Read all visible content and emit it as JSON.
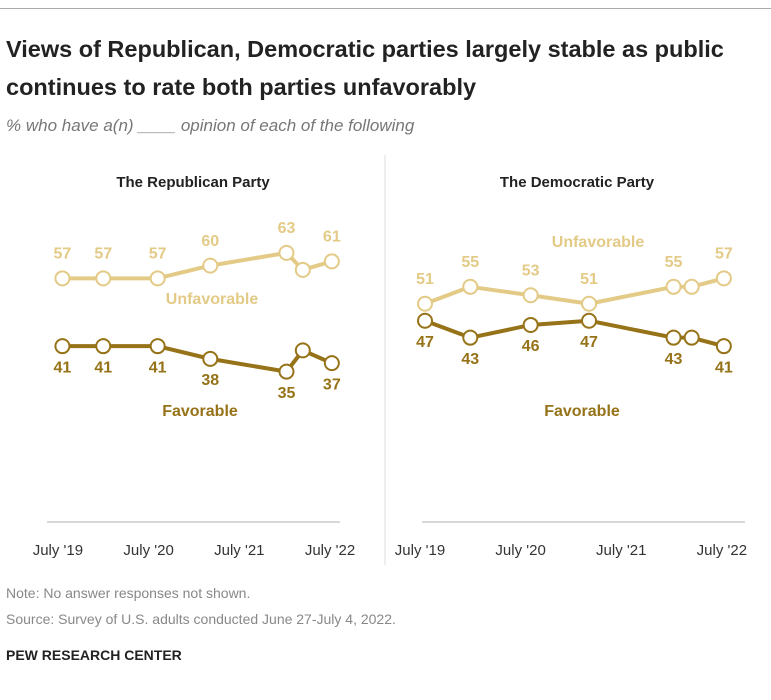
{
  "title": "Views of Republican, Democratic parties largely stable as public continues to rate both parties unfavorably",
  "subtitle": "% who have a(n) ____ opinion of each of the following",
  "chart_data": [
    {
      "type": "line",
      "title": "The Republican Party",
      "x": [
        2019.55,
        2020.0,
        2020.6,
        2021.18,
        2022.02,
        2022.2,
        2022.52
      ],
      "xlim": [
        2019.38,
        2022.61
      ],
      "xticks": [
        {
          "value": 2019.5,
          "label": "July '19"
        },
        {
          "value": 2020.5,
          "label": "July '20"
        },
        {
          "value": 2021.5,
          "label": "July '21"
        },
        {
          "value": 2022.5,
          "label": "July '22"
        }
      ],
      "ylim": [
        0,
        75
      ],
      "series": [
        {
          "name": "Unfavorable",
          "color": "#e3ca86",
          "values": [
            57,
            57,
            57,
            60,
            63,
            59,
            61
          ],
          "value_labels": [
            "57",
            "57",
            "57",
            "60",
            "63",
            null,
            "61"
          ]
        },
        {
          "name": "Favorable",
          "color": "#967318",
          "values": [
            41,
            41,
            41,
            38,
            35,
            40,
            37
          ],
          "value_labels": [
            "41",
            "41",
            "41",
            "38",
            "35",
            null,
            "37"
          ]
        }
      ]
    },
    {
      "type": "line",
      "title": "The Democratic Party",
      "x": [
        2019.55,
        2020.0,
        2020.6,
        2021.18,
        2022.02,
        2022.2,
        2022.52
      ],
      "xlim": [
        2019.52,
        2022.73
      ],
      "xticks": [
        {
          "value": 2019.5,
          "label": "July '19"
        },
        {
          "value": 2020.5,
          "label": "July '20"
        },
        {
          "value": 2021.5,
          "label": "July '21"
        },
        {
          "value": 2022.5,
          "label": "July '22"
        }
      ],
      "ylim": [
        0,
        75
      ],
      "series": [
        {
          "name": "Unfavorable",
          "color": "#e3ca86",
          "values": [
            51,
            55,
            53,
            51,
            55,
            55,
            57
          ],
          "value_labels": [
            "51",
            "55",
            "53",
            "51",
            "55",
            null,
            "57"
          ]
        },
        {
          "name": "Favorable",
          "color": "#967318",
          "values": [
            47,
            43,
            46,
            47,
            43,
            43,
            41
          ],
          "value_labels": [
            "47",
            "43",
            "46",
            "47",
            "43",
            null,
            "41"
          ]
        }
      ]
    }
  ],
  "note": "Note: No answer responses not shown.",
  "source": "Source: Survey of U.S. adults conducted June 27-July 4, 2022.",
  "credit": "PEW RESEARCH CENTER"
}
